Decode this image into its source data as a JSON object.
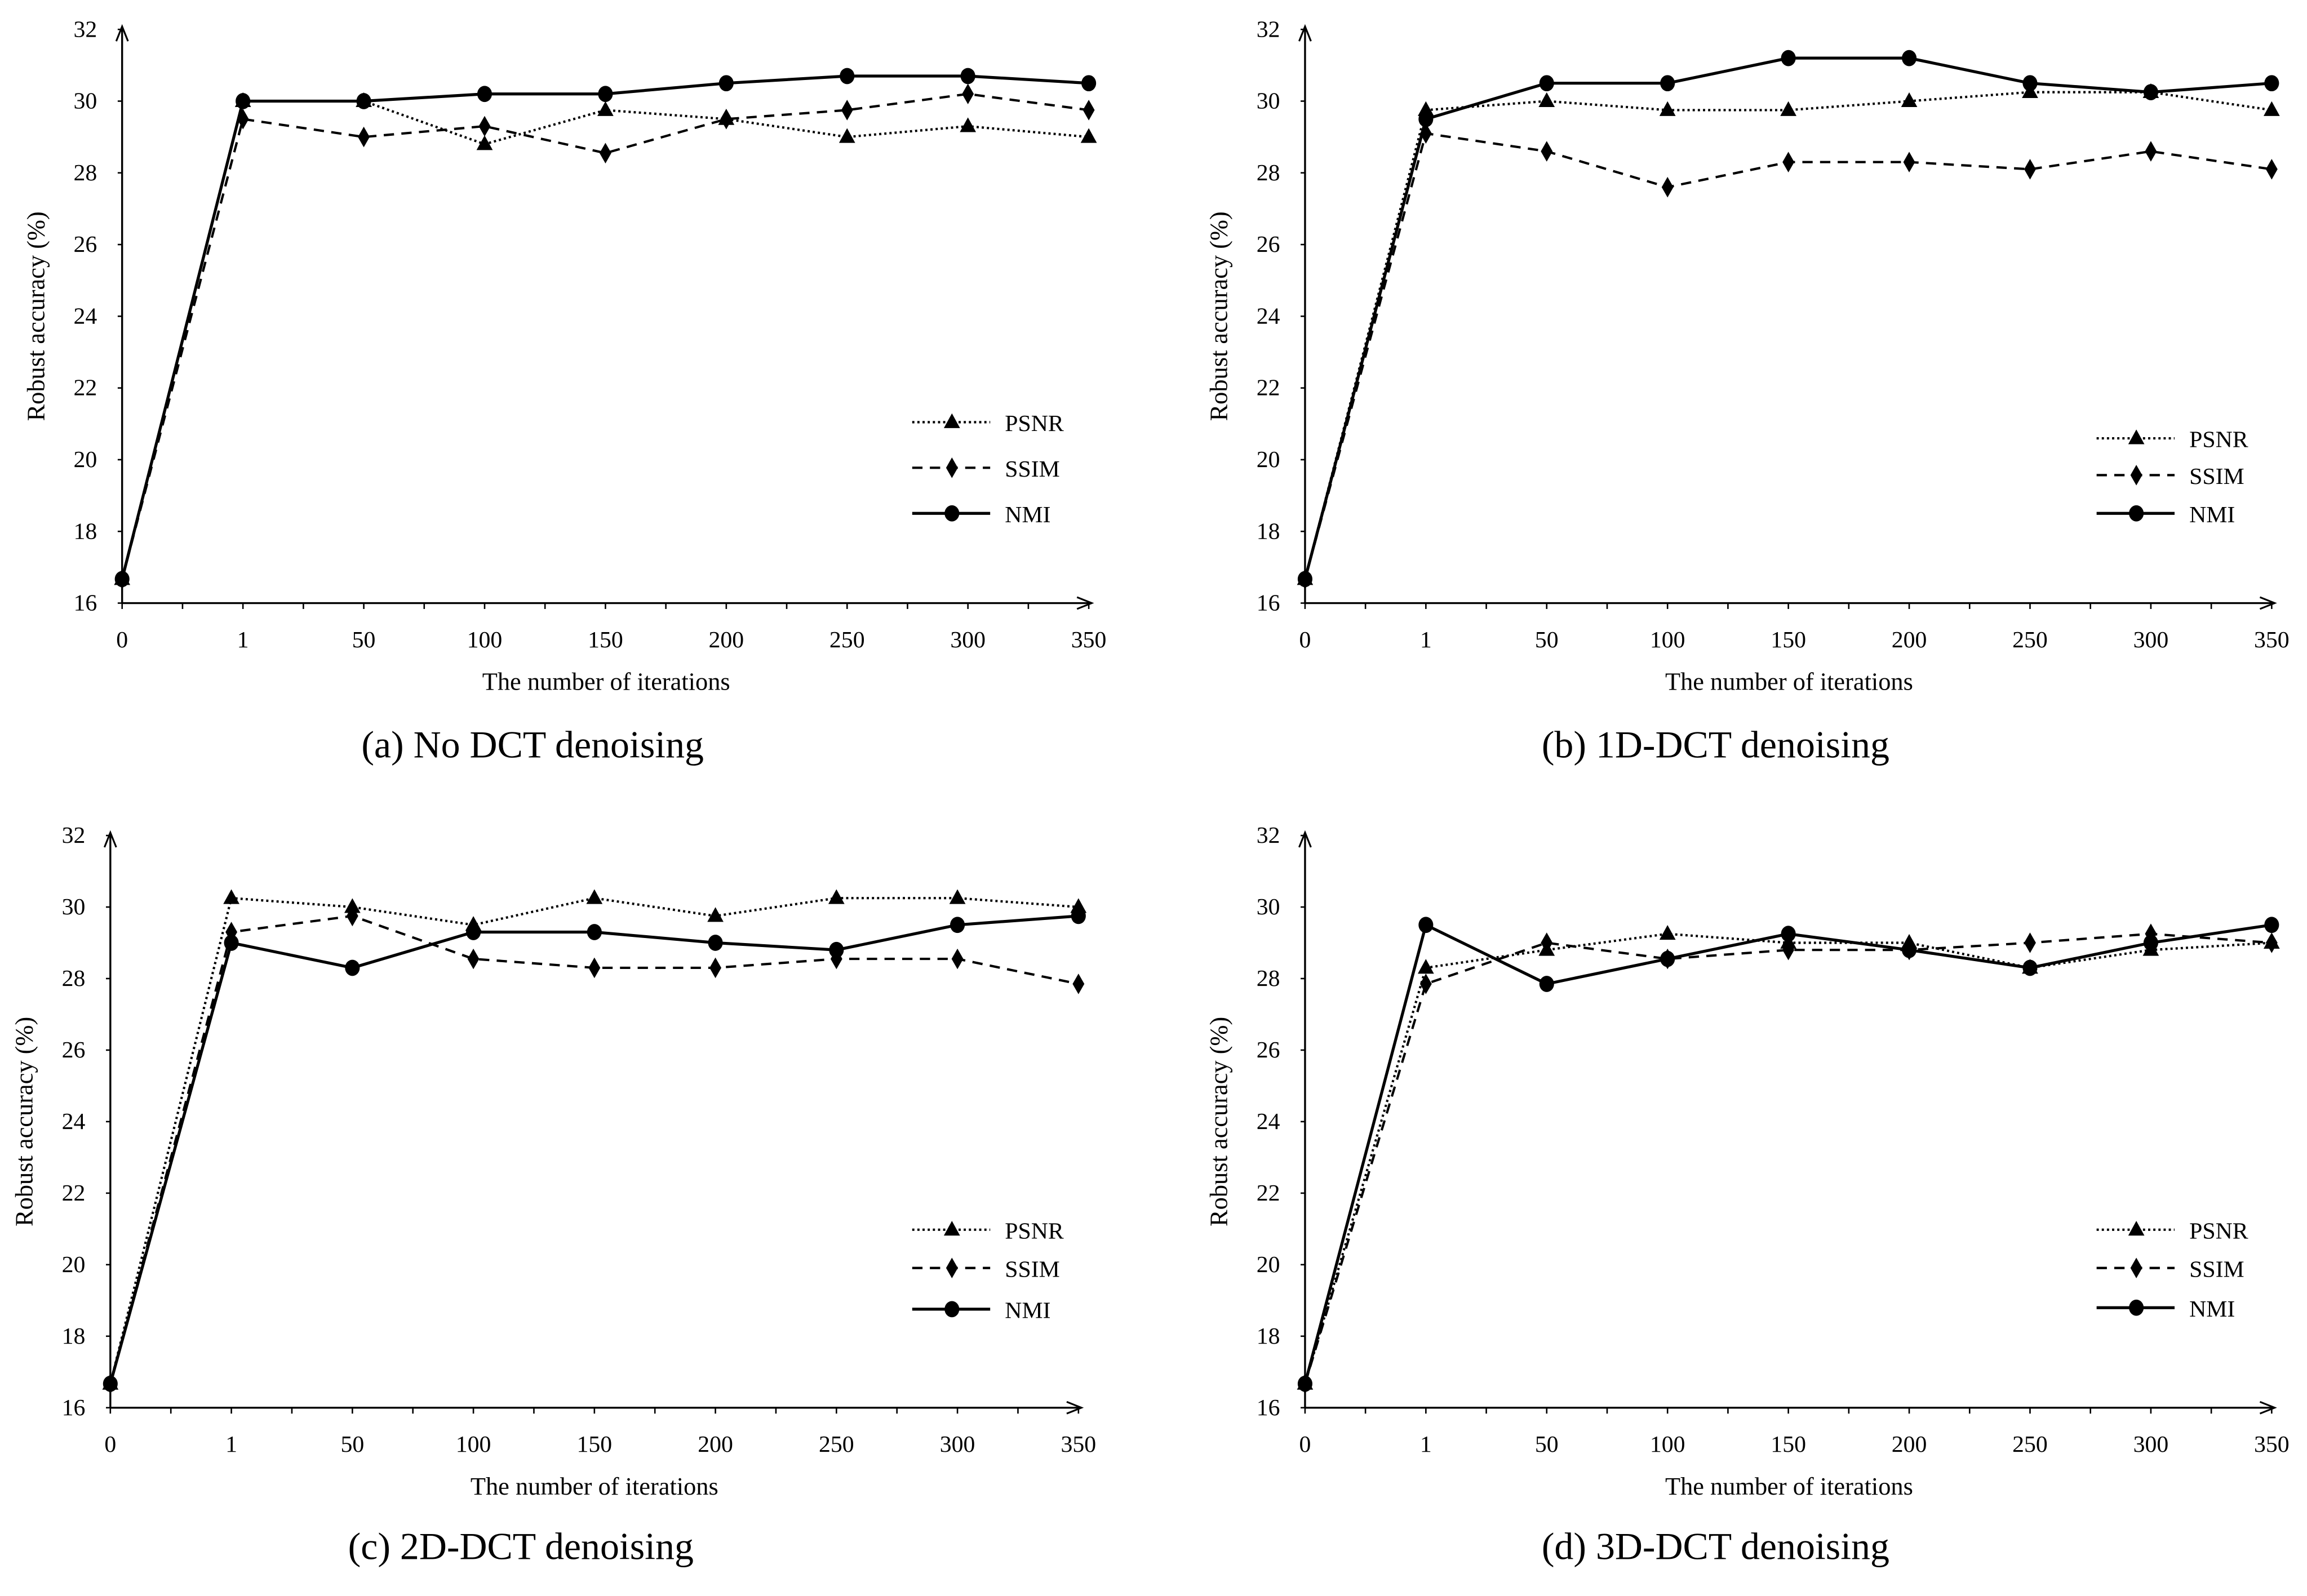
{
  "chart_data": [
    {
      "type": "line",
      "title": "(a) No DCT denoising",
      "xlabel": "The number of iterations",
      "ylabel": "Robust accuracy (%)",
      "categories": [
        "0",
        "1",
        "50",
        "100",
        "150",
        "200",
        "250",
        "300",
        "350"
      ],
      "ylim": [
        16,
        32
      ],
      "yticks": [
        16,
        18,
        20,
        22,
        24,
        26,
        28,
        30,
        32
      ],
      "legend_position": "right-middle",
      "series": [
        {
          "name": "PSNR",
          "style": "dotted",
          "marker": "triangle",
          "values": [
            16.67,
            30.0,
            30.0,
            28.8,
            29.75,
            29.5,
            29.0,
            29.3,
            29.0
          ]
        },
        {
          "name": "SSIM",
          "style": "dashed",
          "marker": "diamond",
          "values": [
            16.67,
            29.5,
            29.0,
            29.3,
            28.55,
            29.5,
            29.75,
            30.2,
            29.75
          ]
        },
        {
          "name": "NMI",
          "style": "solid",
          "marker": "circle",
          "values": [
            16.67,
            30.0,
            30.0,
            30.2,
            30.2,
            30.5,
            30.7,
            30.7,
            30.5
          ]
        }
      ]
    },
    {
      "type": "line",
      "title": "(b) 1D-DCT denoising",
      "xlabel": "The number of iterations",
      "ylabel": "Robust accuracy (%)",
      "categories": [
        "0",
        "1",
        "50",
        "100",
        "150",
        "200",
        "250",
        "300",
        "350"
      ],
      "ylim": [
        16,
        32
      ],
      "yticks": [
        16,
        18,
        20,
        22,
        24,
        26,
        28,
        30,
        32
      ],
      "legend_position": "right-middle",
      "series": [
        {
          "name": "PSNR",
          "style": "dotted",
          "marker": "triangle",
          "values": [
            16.67,
            29.75,
            30.0,
            29.75,
            29.75,
            30.0,
            30.25,
            30.25,
            29.75
          ]
        },
        {
          "name": "SSIM",
          "style": "dashed",
          "marker": "diamond",
          "values": [
            16.67,
            29.1,
            28.6,
            27.6,
            28.3,
            28.3,
            28.1,
            28.6,
            28.1
          ]
        },
        {
          "name": "NMI",
          "style": "solid",
          "marker": "circle",
          "values": [
            16.67,
            29.5,
            30.5,
            30.5,
            31.2,
            31.2,
            30.5,
            30.25,
            30.5
          ]
        }
      ]
    },
    {
      "type": "line",
      "title": "(c) 2D-DCT denoising",
      "xlabel": "The number of iterations",
      "ylabel": "Robust accuracy (%)",
      "categories": [
        "0",
        "1",
        "50",
        "100",
        "150",
        "200",
        "250",
        "300",
        "350"
      ],
      "ylim": [
        16,
        32
      ],
      "yticks": [
        16,
        18,
        20,
        22,
        24,
        26,
        28,
        30,
        32
      ],
      "legend_position": "right-middle",
      "series": [
        {
          "name": "PSNR",
          "style": "dotted",
          "marker": "triangle",
          "values": [
            16.67,
            30.25,
            30.0,
            29.5,
            30.25,
            29.75,
            30.25,
            30.25,
            30.0
          ]
        },
        {
          "name": "SSIM",
          "style": "dashed",
          "marker": "diamond",
          "values": [
            16.67,
            29.3,
            29.75,
            28.55,
            28.3,
            28.3,
            28.55,
            28.55,
            27.85
          ]
        },
        {
          "name": "NMI",
          "style": "solid",
          "marker": "circle",
          "values": [
            16.67,
            29.0,
            28.3,
            29.3,
            29.3,
            29.0,
            28.8,
            29.5,
            29.75
          ]
        }
      ]
    },
    {
      "type": "line",
      "title": "(d) 3D-DCT denoising",
      "xlabel": "The number of iterations",
      "ylabel": "Robust accuracy (%)",
      "categories": [
        "0",
        "1",
        "50",
        "100",
        "150",
        "200",
        "250",
        "300",
        "350"
      ],
      "ylim": [
        16,
        32
      ],
      "yticks": [
        16,
        18,
        20,
        22,
        24,
        26,
        28,
        30,
        32
      ],
      "legend_position": "right-middle",
      "series": [
        {
          "name": "PSNR",
          "style": "dotted",
          "marker": "triangle",
          "values": [
            16.67,
            28.3,
            28.8,
            29.25,
            29.0,
            29.0,
            28.3,
            28.8,
            29.0
          ]
        },
        {
          "name": "SSIM",
          "style": "dashed",
          "marker": "diamond",
          "values": [
            16.67,
            27.85,
            29.0,
            28.55,
            28.8,
            28.8,
            29.0,
            29.25,
            29.0
          ]
        },
        {
          "name": "NMI",
          "style": "solid",
          "marker": "circle",
          "values": [
            16.67,
            29.5,
            27.85,
            28.55,
            29.25,
            28.8,
            28.3,
            29.0,
            29.5
          ]
        }
      ]
    }
  ]
}
